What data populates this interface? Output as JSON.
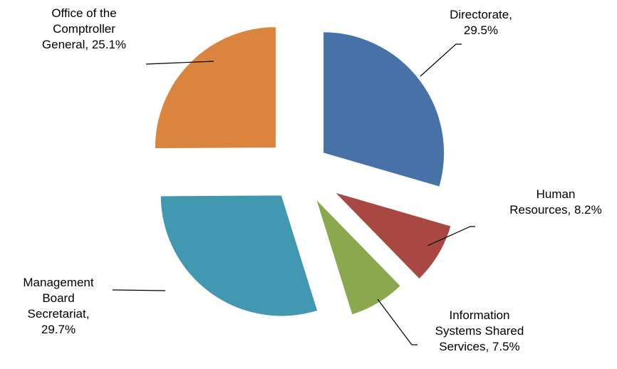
{
  "chart_data": {
    "type": "pie",
    "labels": [
      "Directorate, 29.5%",
      "Human Resources, 8.2%",
      "Information Systems Shared Services, 7.5%",
      "Management Board Secretariat, 29.7%",
      "Office of the Comptroller General, 25.1%"
    ],
    "values": [
      29.5,
      8.2,
      7.5,
      29.7,
      25.1
    ],
    "colors": [
      "#4672a8",
      "#a94743",
      "#8aa84e",
      "#4298b0",
      "#da843e"
    ]
  }
}
